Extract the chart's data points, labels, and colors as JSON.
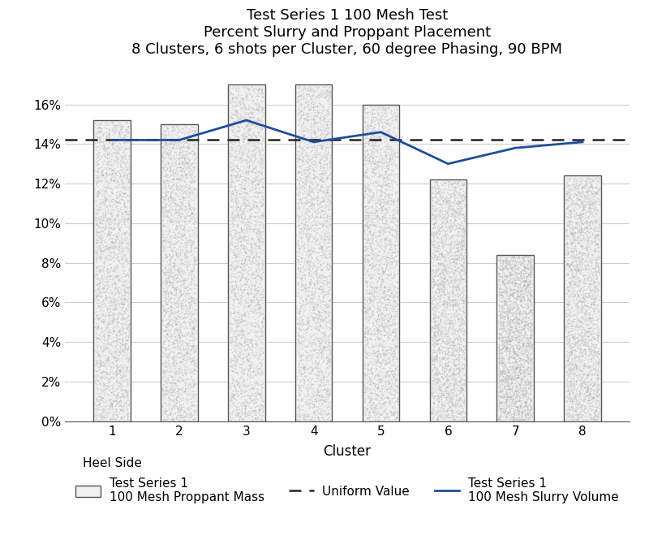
{
  "title_line1": "Test Series 1 100 Mesh Test",
  "title_line2": "Percent Slurry and Proppant Placement",
  "title_line3": "8 Clusters, 6 shots per Cluster, 60 degree Phasing, 90 BPM",
  "xlabel": "Cluster",
  "xlabel_note": "Heel Side",
  "clusters": [
    1,
    2,
    3,
    4,
    5,
    6,
    7,
    8
  ],
  "bar_values": [
    15.2,
    15.0,
    17.0,
    17.0,
    16.0,
    12.2,
    8.4,
    12.4
  ],
  "slurry_values": [
    14.2,
    14.2,
    15.2,
    14.1,
    14.6,
    13.0,
    13.8,
    14.1
  ],
  "uniform_value": 14.2,
  "bar_facecolor": "#f0f0f0",
  "bar_edgecolor": "#555555",
  "slurry_color": "#1f4e9e",
  "uniform_color": "#222222",
  "ylim": [
    0,
    18
  ],
  "yticks": [
    0,
    2,
    4,
    6,
    8,
    10,
    12,
    14,
    16
  ],
  "ytick_labels": [
    "0%",
    "2%",
    "4%",
    "6%",
    "8%",
    "10%",
    "12%",
    "14%",
    "16%"
  ],
  "legend_bar_label1": "Test Series 1",
  "legend_bar_label2": "100 Mesh Proppant Mass",
  "legend_uniform_label": "Uniform Value",
  "legend_slurry_label1": "Test Series 1",
  "legend_slurry_label2": "100 Mesh Slurry Volume",
  "bar_width": 0.55,
  "title_fontsize": 13,
  "axis_fontsize": 12,
  "tick_fontsize": 11,
  "legend_fontsize": 11,
  "grid_color": "#cccccc",
  "noise_density": 3000,
  "noise_alpha": 0.35,
  "noise_size": 1.5
}
